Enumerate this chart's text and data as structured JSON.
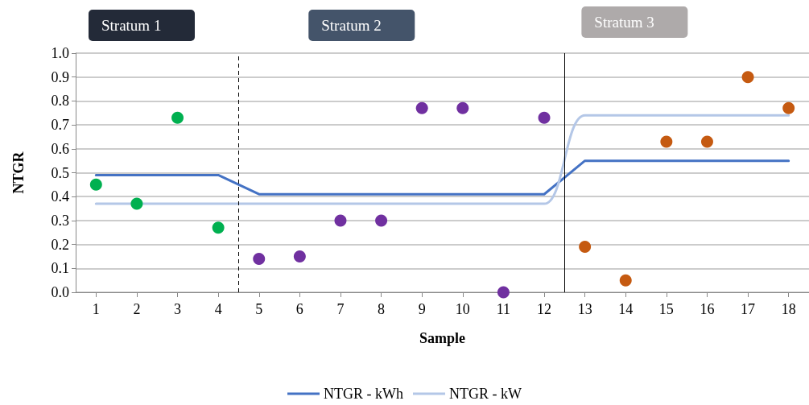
{
  "chart_data": {
    "type": "line",
    "ylabel": "NTGR",
    "xlabel": "Sample",
    "x": [
      1,
      2,
      3,
      4,
      5,
      6,
      7,
      8,
      9,
      10,
      11,
      12,
      13,
      14,
      15,
      16,
      17,
      18
    ],
    "xlim": [
      0.5,
      18.5
    ],
    "xticks": [
      1,
      2,
      3,
      4,
      5,
      6,
      7,
      8,
      9,
      10,
      11,
      12,
      13,
      14,
      15,
      16,
      17,
      18
    ],
    "ylim": [
      0,
      1
    ],
    "yticks": [
      {
        "value": 0,
        "label": "0.0"
      },
      {
        "value": 0.1,
        "label": "0.1"
      },
      {
        "value": 0.2,
        "label": "0.2"
      },
      {
        "value": 0.3,
        "label": "0.3"
      },
      {
        "value": 0.4,
        "label": "0.4"
      },
      {
        "value": 0.5,
        "label": "0.5"
      },
      {
        "value": 0.6,
        "label": "0.6"
      },
      {
        "value": 0.7,
        "label": "0.7"
      },
      {
        "value": 0.8,
        "label": "0.8"
      },
      {
        "value": 0.9,
        "label": "0.9"
      },
      {
        "value": 1,
        "label": "1.0"
      }
    ],
    "grid": "y",
    "legend": "bottom",
    "marker": "circle",
    "series": [
      {
        "name": "NTGR - kWh",
        "marker": "none",
        "color": "#4472c4",
        "values": [
          0.49,
          0.49,
          0.49,
          0.49,
          0.41,
          0.41,
          0.41,
          0.41,
          0.41,
          0.41,
          0.41,
          0.41,
          0.55,
          0.55,
          0.55,
          0.55,
          0.55,
          0.55
        ]
      },
      {
        "name": "NTGR - kW",
        "marker": "none",
        "color": "#b4c7e7",
        "values": [
          0.37,
          0.37,
          0.37,
          0.37,
          0.37,
          0.37,
          0.37,
          0.37,
          0.37,
          0.37,
          0.37,
          0.37,
          0.74,
          0.74,
          0.74,
          0.74,
          0.74,
          0.74
        ]
      },
      {
        "type": "scatter",
        "color": "#00b050",
        "x": [
          1,
          2,
          3,
          4
        ],
        "values": [
          0.45,
          0.37,
          0.73,
          0.27
        ]
      },
      {
        "type": "scatter",
        "color": "#7030a0",
        "x": [
          5,
          6,
          7,
          8,
          9,
          10,
          11,
          12
        ],
        "values": [
          0.14,
          0.15,
          0.3,
          0.3,
          0.77,
          0.77,
          0,
          0.73
        ]
      },
      {
        "type": "scatter",
        "color": "#c55a11",
        "x": [
          13,
          14,
          15,
          16,
          17,
          18
        ],
        "values": [
          0.19,
          0.05,
          0.63,
          0.63,
          0.9,
          0.77
        ]
      }
    ],
    "ref_lines": [
      {
        "axis": "x",
        "value": 4.5,
        "line_style": "dashed",
        "color": "#000000"
      },
      {
        "axis": "x",
        "value": 12.5,
        "line_style": "solid",
        "color": "#000000"
      }
    ],
    "annotations": [
      "Stratum 1",
      "Stratum 2",
      "Stratum 3"
    ]
  }
}
